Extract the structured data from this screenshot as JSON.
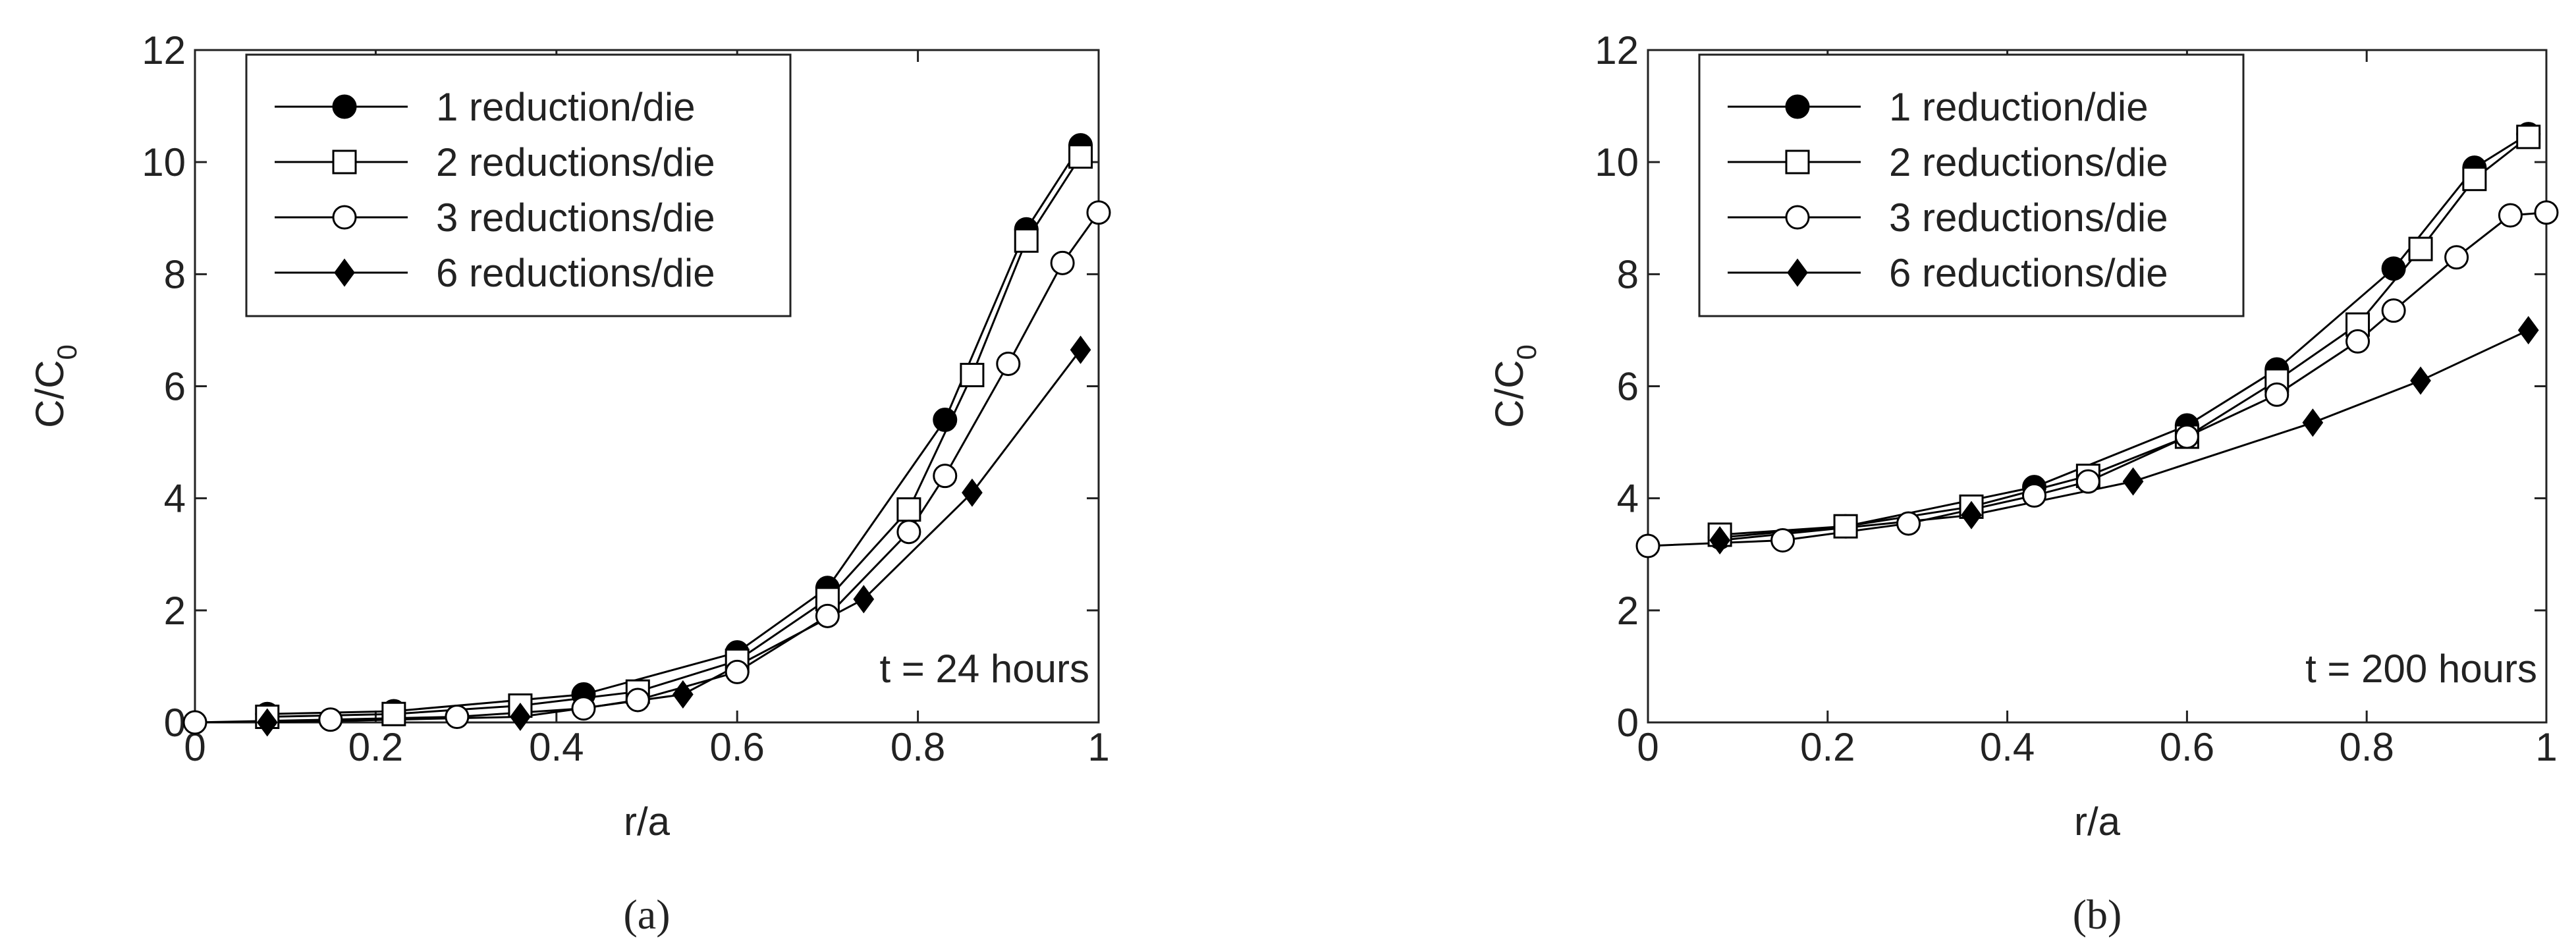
{
  "chart_data": [
    {
      "type": "line",
      "caption": "(a)",
      "annotation": "t = 24 hours",
      "xlabel": "r/a",
      "ylabel": [
        "C/C",
        "0"
      ],
      "xlim": [
        0,
        1
      ],
      "ylim": [
        0,
        12
      ],
      "xticks": [
        0,
        0.2,
        0.4,
        0.6,
        0.8,
        1
      ],
      "yticks": [
        0,
        2,
        4,
        6,
        8,
        10,
        12
      ],
      "legend": "upper-left",
      "series": [
        {
          "name": "1 reduction/die",
          "color": "#000000",
          "marker": "filled-circle",
          "x": [
            0.08,
            0.22,
            0.43,
            0.6,
            0.7,
            0.83,
            0.92,
            0.98
          ],
          "values": [
            0.15,
            0.2,
            0.5,
            1.25,
            2.4,
            5.4,
            8.8,
            10.3
          ]
        },
        {
          "name": "2 reductions/die",
          "color": "#000000",
          "marker": "open-square",
          "x": [
            0.08,
            0.22,
            0.36,
            0.49,
            0.6,
            0.7,
            0.79,
            0.86,
            0.92,
            0.98
          ],
          "values": [
            0.1,
            0.15,
            0.3,
            0.55,
            1.1,
            2.2,
            3.8,
            6.2,
            8.6,
            10.1
          ]
        },
        {
          "name": "3 reductions/die",
          "color": "#000000",
          "marker": "open-circle",
          "x": [
            0,
            0.15,
            0.29,
            0.43,
            0.49,
            0.6,
            0.7,
            0.79,
            0.83,
            0.9,
            0.96,
            1
          ],
          "values": [
            0,
            0.05,
            0.1,
            0.25,
            0.4,
            0.9,
            1.9,
            3.4,
            4.4,
            6.4,
            8.2,
            9.1
          ]
        },
        {
          "name": "6 reductions/die",
          "color": "#000000",
          "marker": "filled-diamond",
          "x": [
            0.08,
            0.36,
            0.54,
            0.74,
            0.86,
            0.98
          ],
          "values": [
            0,
            0.1,
            0.5,
            2.2,
            4.1,
            6.65
          ]
        }
      ]
    },
    {
      "type": "line",
      "caption": "(b)",
      "annotation": "t = 200 hours",
      "xlabel": "r/a",
      "ylabel": [
        "C/C",
        "0"
      ],
      "xlim": [
        0,
        1
      ],
      "ylim": [
        0,
        12
      ],
      "xticks": [
        0,
        0.2,
        0.4,
        0.6,
        0.8,
        1
      ],
      "yticks": [
        0,
        2,
        4,
        6,
        8,
        10,
        12
      ],
      "legend": "upper-left",
      "series": [
        {
          "name": "1 reduction/die",
          "color": "#000000",
          "marker": "filled-circle",
          "x": [
            0.08,
            0.22,
            0.43,
            0.6,
            0.7,
            0.83,
            0.92,
            0.98
          ],
          "values": [
            3.3,
            3.5,
            4.2,
            5.3,
            6.3,
            8.1,
            9.9,
            10.5
          ]
        },
        {
          "name": "2 reductions/die",
          "color": "#000000",
          "marker": "open-square",
          "x": [
            0.08,
            0.22,
            0.36,
            0.49,
            0.6,
            0.7,
            0.79,
            0.86,
            0.92,
            0.98
          ],
          "values": [
            3.35,
            3.5,
            3.85,
            4.4,
            5.1,
            6.1,
            7.1,
            8.45,
            9.7,
            10.45
          ]
        },
        {
          "name": "3 reductions/die",
          "color": "#000000",
          "marker": "open-circle",
          "x": [
            0,
            0.15,
            0.29,
            0.43,
            0.49,
            0.6,
            0.7,
            0.79,
            0.83,
            0.9,
            0.96,
            1
          ],
          "values": [
            3.15,
            3.25,
            3.55,
            4.05,
            4.3,
            5.1,
            5.85,
            6.8,
            7.35,
            8.3,
            9.05,
            9.1
          ]
        },
        {
          "name": "6 reductions/die",
          "color": "#000000",
          "marker": "filled-diamond",
          "x": [
            0.08,
            0.36,
            0.54,
            0.74,
            0.86,
            0.98
          ],
          "values": [
            3.25,
            3.7,
            4.3,
            5.35,
            6.1,
            7.0
          ]
        }
      ]
    }
  ]
}
